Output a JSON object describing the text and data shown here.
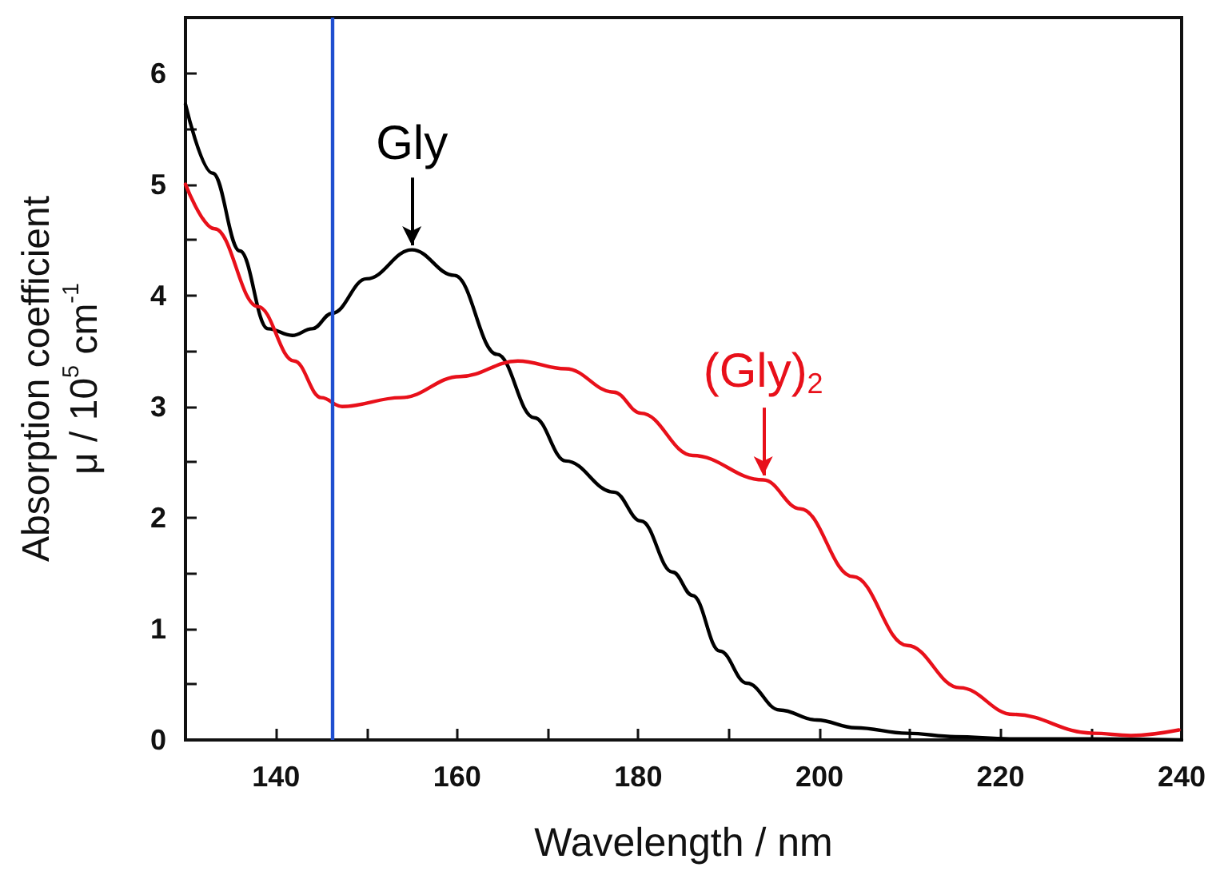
{
  "chart_data": {
    "type": "line",
    "xlabel": "Wavelength / nm",
    "ylabel": "Absorption coefficient\nμ / 10$^{5}$ cm$^{-1}$",
    "xlim": [
      130,
      240
    ],
    "ylim": [
      0,
      6.5
    ],
    "xticks": [
      140,
      {
        "value": 150,
        "label": null
      },
      160,
      {
        "value": 170,
        "label": null
      },
      180,
      {
        "value": 190,
        "label": null
      },
      200,
      {
        "value": 210,
        "label": null
      },
      220,
      {
        "value": 230,
        "label": null
      },
      240
    ],
    "yticks": [
      0,
      {
        "value": 0.5,
        "label": null
      },
      1,
      {
        "value": 1.5,
        "label": null
      },
      2,
      {
        "value": 2.5,
        "label": null
      },
      3,
      {
        "value": 3.5,
        "label": null
      },
      4,
      {
        "value": 4.5,
        "label": null
      },
      5,
      {
        "value": 5.5,
        "label": null
      },
      6
    ],
    "grid": false,
    "marker": "none",
    "line_style": "solid",
    "series": [
      {
        "color": "#000000",
        "x": [
          130,
          133,
          136,
          139.1,
          141.8,
          144,
          146.2,
          150,
          155,
          159.7,
          164.4,
          168.5,
          172,
          177.3,
          180.3,
          183.8,
          186,
          189,
          192,
          195.6,
          199.7,
          204,
          209.7,
          215,
          221,
          230,
          240
        ],
        "values": [
          5.72,
          5.1,
          4.4,
          3.7,
          3.64,
          3.7,
          3.84,
          4.15,
          4.41,
          4.18,
          3.47,
          2.9,
          2.51,
          2.23,
          1.97,
          1.51,
          1.3,
          0.8,
          0.51,
          0.27,
          0.18,
          0.11,
          0.06,
          0.03,
          0.01,
          0.01,
          0.0
        ]
      },
      {
        "color": "#e8101a",
        "x": [
          130,
          133.2,
          138,
          142,
          145,
          147.3,
          153.8,
          160.3,
          166.7,
          172,
          177.3,
          180.3,
          186,
          193.8,
          197.9,
          203.7,
          209.7,
          215.5,
          221.4,
          230.2,
          234.4,
          239.7
        ],
        "values": [
          5.0,
          4.6,
          3.9,
          3.41,
          3.08,
          3.0,
          3.08,
          3.27,
          3.41,
          3.34,
          3.13,
          2.94,
          2.56,
          2.34,
          2.08,
          1.47,
          0.85,
          0.47,
          0.23,
          0.06,
          0.04,
          0.09
        ]
      }
    ],
    "ref_lines": [
      {
        "axis": "x",
        "value": 146.2,
        "color": "#1f4fd0"
      }
    ],
    "annotations": [
      {
        "text": "Gly",
        "x": 155,
        "y": 4.41
      },
      {
        "text": "(Gly)$_{2}$",
        "x": 193.8,
        "y": 2.34
      }
    ]
  }
}
